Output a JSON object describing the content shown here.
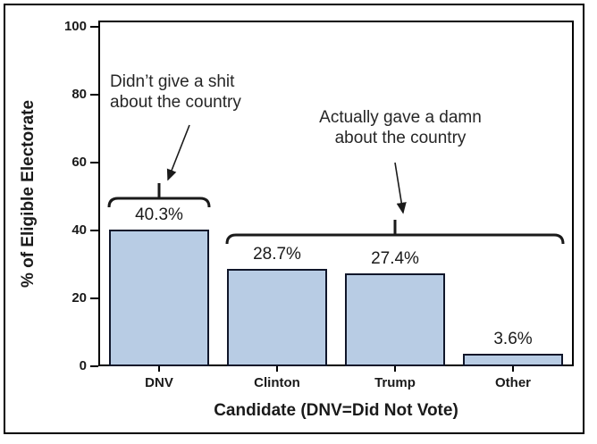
{
  "chart_data": {
    "type": "bar",
    "categories": [
      "DNV",
      "Clinton",
      "Trump",
      "Other"
    ],
    "values": [
      40.3,
      28.7,
      27.4,
      3.6
    ],
    "value_labels": [
      "40.3%",
      "28.7%",
      "27.4%",
      "3.6%"
    ],
    "xlabel": "Candidate (DNV=Did Not Vote)",
    "ylabel": "% of Eligible Electorate",
    "ylim": [
      0,
      100
    ],
    "yticks": [
      0,
      20,
      40,
      60,
      80,
      100
    ],
    "grid": false,
    "legend": "none",
    "bar_fill": "#b8cce4",
    "bar_border": "#10162a",
    "axis_color": "#000000",
    "annotations": [
      {
        "lines": [
          "Didn’t give a shit",
          "about the country"
        ],
        "target": "DNV"
      },
      {
        "lines": [
          "Actually gave a damn",
          "about the country"
        ],
        "target": "Clinton, Trump, Other"
      }
    ]
  }
}
